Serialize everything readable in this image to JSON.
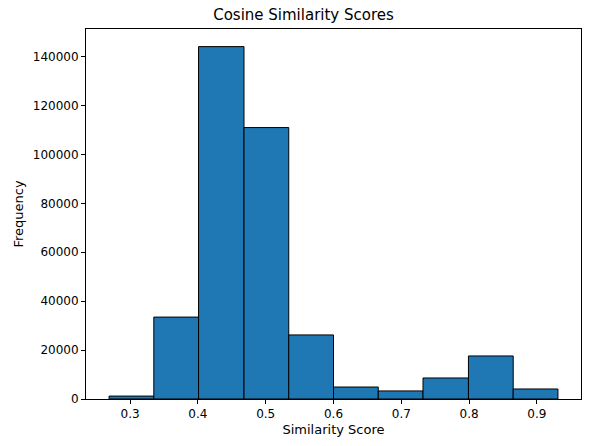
{
  "chart_data": {
    "type": "histogram",
    "title": "Cosine Similarity Scores",
    "x_label": "Similarity Score",
    "y_label": "Frequency",
    "bins": [
      0.269,
      0.335,
      0.401,
      0.468,
      0.534,
      0.6,
      0.666,
      0.732,
      0.799,
      0.865,
      0.931
    ],
    "values": [
      1200,
      33500,
      144100,
      111000,
      26200,
      4900,
      3300,
      8600,
      17600,
      4100
    ],
    "color": "#1f77b4",
    "xlim": [
      0.235,
      0.965
    ],
    "xticks": [
      0.3,
      0.4,
      0.5,
      0.6,
      0.7,
      0.8,
      0.9
    ],
    "ylim": [
      0,
      151300
    ],
    "yticks": [
      0,
      20000,
      40000,
      60000,
      80000,
      100000,
      120000,
      140000
    ],
    "grid": false
  }
}
